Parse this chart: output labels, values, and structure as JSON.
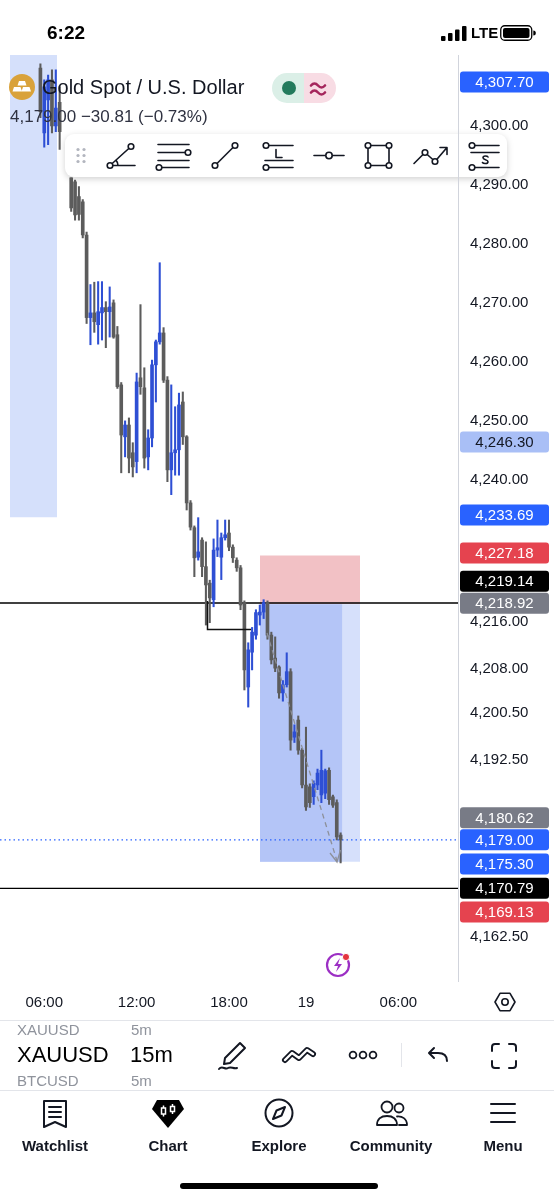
{
  "chart_data": {
    "type": "candlestick",
    "title": "Gold Spot / U.S. Dollar",
    "subtitle": "4,179.00 −30.81 (−0.73%)",
    "categories": [
      null,
      null,
      null,
      null,
      null,
      null,
      null,
      null,
      null,
      null,
      null,
      "06:00",
      null,
      null,
      null,
      null,
      null,
      null,
      null,
      null,
      null,
      null,
      null,
      null,
      null,
      null,
      null,
      null,
      null,
      null,
      null,
      null,
      null,
      null,
      null,
      "12:00",
      null,
      null,
      null,
      null,
      null,
      null,
      null,
      null,
      null,
      null,
      null,
      null,
      null,
      null,
      null,
      null,
      null,
      null,
      null,
      null,
      null,
      null,
      null,
      "18:00",
      null,
      null,
      null,
      null,
      null,
      null,
      null,
      null,
      null,
      null,
      null,
      null,
      null,
      null,
      null,
      null,
      null,
      null,
      null,
      "19",
      null,
      null,
      null,
      null,
      null,
      null,
      null,
      null,
      null,
      null,
      null,
      null,
      null,
      null,
      null,
      null,
      null,
      null,
      null,
      null,
      null,
      null,
      null,
      "06:00",
      null,
      null,
      null,
      null,
      null,
      null,
      null,
      null,
      null,
      null,
      null,
      null,
      null,
      null,
      null
    ],
    "ohlc": [
      null,
      null,
      null,
      null,
      null,
      null,
      null,
      null,
      null,
      null,
      [
        4309.8,
        4310.5,
        4301.4,
        4302.4
      ],
      [
        4298.8,
        4307.8,
        4296.4,
        4306.6
      ],
      [
        4304.4,
        4308.6,
        4296.8,
        4307.8
      ],
      [
        4307.8,
        4309.5,
        4298.8,
        4300.0
      ],
      [
        4300.0,
        4309.5,
        4299.0,
        4303.0
      ],
      [
        4304.0,
        4306.6,
        4296.0,
        4299.0
      ],
      null,
      null,
      [
        4291.2,
        4291.2,
        4285.5,
        4286.1
      ],
      [
        4290.5,
        4290.8,
        4284.0,
        4284.9
      ],
      [
        4288.0,
        4289.7,
        4284.0,
        4285.0
      ],
      [
        4287.1,
        4287.5,
        4281.0,
        4281.5
      ],
      [
        4281.5,
        4282.0,
        4266.5,
        4267.5
      ],
      [
        4267.5,
        4273.1,
        4262.9,
        4268.3
      ],
      [
        4268.3,
        4273.5,
        4265.0,
        4266.8
      ],
      [
        4266.3,
        4273.6,
        4263.0,
        4268.5
      ],
      [
        4268.3,
        4273.6,
        4263.7,
        4269.2
      ],
      [
        4269.2,
        4270.2,
        4262.4,
        4268.5
      ],
      [
        4268.5,
        4272.7,
        4264.2,
        4269.3
      ],
      [
        4270.0,
        4270.5,
        4264.0,
        4264.2
      ],
      [
        4264.6,
        4266.0,
        4255.5,
        4255.8
      ],
      [
        4256.1,
        4256.5,
        4241.2,
        4247.6
      ],
      [
        4247.3,
        4250.0,
        4243.9,
        4249.3
      ],
      [
        4249.3,
        4250.5,
        4241.2,
        4243.7
      ],
      [
        4244.6,
        4246.3,
        4240.5,
        4242.2
      ],
      [
        4243.1,
        4258.1,
        4241.2,
        4256.6
      ],
      [
        4257.3,
        4269.7,
        4254.5,
        4255.8
      ],
      [
        4255.6,
        4259.0,
        4242.0,
        4243.7
      ],
      [
        4243.9,
        4248.5,
        4241.7,
        4247.1
      ],
      [
        4247.1,
        4260.3,
        4245.6,
        4259.5
      ],
      [
        4259.5,
        4263.7,
        4253.2,
        4263.4
      ],
      [
        4263.4,
        4276.8,
        4263.0,
        4264.9
      ],
      [
        4264.9,
        4265.8,
        4256.5,
        4256.9
      ],
      [
        4256.9,
        4257.5,
        4239.7,
        4241.7
      ],
      [
        4241.7,
        4256.1,
        4237.5,
        4244.6
      ],
      [
        4244.6,
        4252.4,
        4240.8,
        4245.1
      ],
      [
        4245.1,
        4254.7,
        4240.8,
        4252.7
      ],
      [
        4253.2,
        4254.9,
        4246.0,
        4247.3
      ],
      [
        4247.3,
        4247.5,
        4234.9,
        4236.1
      ],
      [
        4236.1,
        4236.5,
        4231.5,
        4232.0
      ],
      [
        4231.9,
        4232.2,
        4223.6,
        4226.8
      ],
      [
        4226.9,
        4233.6,
        4226.4,
        4227.8
      ],
      [
        4229.8,
        4230.2,
        4223.6,
        4225.3
      ],
      [
        4225.3,
        4229.5,
        4215.4,
        4222.2
      ],
      [
        4222.5,
        4223.0,
        4215.8,
        4220.0
      ],
      [
        4219.7,
        4230.0,
        4218.5,
        4228.1
      ],
      [
        4228.1,
        4233.2,
        4227.0,
        4228.5
      ],
      [
        4226.9,
        4231.0,
        4223.1,
        4230.2
      ],
      [
        4230.2,
        4233.2,
        4229.8,
        4230.7
      ],
      [
        4231.0,
        4233.2,
        4228.0,
        4228.6
      ],
      [
        4228.6,
        4229.0,
        4226.0,
        4226.8
      ],
      [
        4226.4,
        4226.8,
        4224.5,
        4225.1
      ],
      [
        4225.1,
        4225.5,
        4218.0,
        4218.8
      ],
      [
        4219.2,
        4219.5,
        4204.4,
        4207.8
      ],
      [
        4204.9,
        4212.4,
        4201.5,
        4211.2
      ],
      [
        4210.8,
        4215.0,
        4207.8,
        4214.2
      ],
      [
        4213.7,
        4218.0,
        4213.0,
        4217.5
      ],
      [
        4217.1,
        4218.8,
        4215.4,
        4217.6
      ],
      [
        4217.6,
        4219.7,
        4216.5,
        4219.2
      ],
      [
        4219.2,
        4219.5,
        4213.0,
        4213.7
      ],
      [
        4213.7,
        4214.2,
        4208.8,
        4209.5
      ],
      [
        4209.8,
        4213.4,
        4207.5,
        4208.1
      ],
      [
        4208.3,
        4208.5,
        4203.0,
        4203.9
      ],
      [
        4203.9,
        4206.0,
        4202.5,
        4205.3
      ],
      [
        4205.3,
        4210.7,
        4204.9,
        4207.5
      ],
      [
        4207.5,
        4208.0,
        4194.2,
        4195.9
      ],
      [
        4196.4,
        4198.5,
        4195.5,
        4197.3
      ],
      [
        4199.3,
        4200.0,
        4193.5,
        4194.2
      ],
      [
        4194.2,
        4194.5,
        4187.8,
        4188.3
      ],
      [
        4188.3,
        4198.1,
        4184.0,
        4184.6
      ],
      [
        4188.0,
        4188.5,
        4184.5,
        4185.3
      ],
      [
        4186.3,
        4189.0,
        4185.0,
        4188.6
      ],
      [
        4188.3,
        4191.0,
        4187.5,
        4190.3
      ],
      [
        4186.6,
        4194.2,
        4185.3,
        4190.8
      ],
      [
        4186.9,
        4191.0,
        4186.0,
        4190.7
      ],
      [
        4190.8,
        4191.2,
        4185.0,
        4185.8
      ],
      [
        4186.3,
        4186.6,
        4184.5,
        4184.9
      ],
      [
        4185.3,
        4185.8,
        4179.0,
        4179.5
      ],
      [
        4179.8,
        4180.2,
        4175.1,
        4179.0
      ],
      null,
      null,
      null,
      null,
      null,
      null,
      null,
      null,
      null,
      null,
      null,
      null,
      null,
      null,
      null,
      null,
      null,
      null,
      null,
      null,
      null,
      null,
      null,
      null,
      null,
      null,
      null,
      null,
      null,
      null
    ],
    "colors": [
      null,
      null,
      null,
      null,
      null,
      null,
      null,
      null,
      null,
      null,
      "#5c5c5c",
      "#2e4fd4",
      "#2e4fd4",
      "#5c5c5c",
      "#2e4fd4",
      "#5c5c5c",
      null,
      null,
      "#5c5c5c",
      "#5c5c5c",
      "#5c5c5c",
      "#5c5c5c",
      "#5c5c5c",
      "#2e4fd4",
      "#5c5c5c",
      "#2e4fd4",
      "#2e4fd4",
      "#5c5c5c",
      "#2e4fd4",
      "#5c5c5c",
      "#5c5c5c",
      "#5c5c5c",
      "#2e4fd4",
      "#5c5c5c",
      "#5c5c5c",
      "#2e4fd4",
      "#5c5c5c",
      "#5c5c5c",
      "#2e4fd4",
      "#2e4fd4",
      "#2e4fd4",
      "#2e4fd4",
      "#5c5c5c",
      "#5c5c5c",
      "#2e4fd4",
      "#2e4fd4",
      "#2e4fd4",
      "#5c5c5c",
      "#5c5c5c",
      "#5c5c5c",
      "#5c5c5c",
      "#2e4fd4",
      "#5c5c5c",
      "#5c5c5c",
      "#5c5c5c",
      "#2e4fd4",
      "#2e4fd4",
      "#2e4fd4",
      "#2e4fd4",
      "#5c5c5c",
      "#5c5c5c",
      "#5c5c5c",
      "#5c5c5c",
      "#5c5c5c",
      "#2e4fd4",
      "#2e4fd4",
      "#2e4fd4",
      "#2e4fd4",
      "#2e4fd4",
      "#5c5c5c",
      "#5c5c5c",
      "#5c5c5c",
      "#5c5c5c",
      "#2e4fd4",
      "#2e4fd4",
      "#5c5c5c",
      "#2e4fd4",
      "#5c5c5c",
      "#5c5c5c",
      "#5c5c5c",
      "#5c5c5c",
      "#2e4fd4",
      "#2e4fd4",
      "#2e4fd4",
      "#2e4fd4",
      "#5c5c5c",
      "#5c5c5c",
      "#5c5c5c",
      "#5c5c5c",
      null,
      null,
      null,
      null,
      null,
      null,
      null,
      null,
      null,
      null,
      null,
      null,
      null,
      null,
      null,
      null,
      null,
      null,
      null,
      null,
      null,
      null,
      null,
      null,
      null,
      null,
      null,
      null,
      null,
      null
    ],
    "ylim": [
      4155,
      4312
    ],
    "yticks": [
      {
        "value": 4300,
        "label": "4,300.00"
      },
      {
        "value": 4290,
        "label": "4,290.00"
      },
      {
        "value": 4280,
        "label": "4,280.00"
      },
      {
        "value": 4270,
        "label": "4,270.00"
      },
      {
        "value": 4260,
        "label": "4,260.00"
      },
      {
        "value": 4250,
        "label": "4,250.00"
      },
      {
        "value": 4240,
        "label": "4,240.00"
      },
      {
        "value": 4216,
        "label": "4,216.00"
      },
      {
        "value": 4208,
        "label": "4,208.00"
      },
      {
        "value": 4200.5,
        "label": "4,200.50"
      },
      {
        "value": 4192.5,
        "label": "4,192.50"
      },
      {
        "value": 4162.5,
        "label": "4,162.50"
      }
    ],
    "ref_lines": [
      {
        "axis": "y",
        "value": 4219.14,
        "label": "4,219.14",
        "color": "#000000"
      },
      {
        "axis": "y",
        "value": 4170.79,
        "label": "4,170.79",
        "color": "#000000"
      },
      {
        "axis": "y",
        "value": 4179.0,
        "label": "4,179.00",
        "color": "#2962ff",
        "line_style": "dotted"
      }
    ],
    "bands": [
      {
        "axis": "y",
        "from": 4218.92,
        "to": 4227.18,
        "color": "#f2c1c5"
      },
      {
        "axis": "y",
        "from": 4175.3,
        "to": 4218.92,
        "color": "#d6e0fb"
      },
      {
        "axis": "y",
        "from": 4175.3,
        "to": 4218.92,
        "color": "#b4c5f7"
      },
      {
        "axis": "y",
        "from": 4233.69,
        "to": 4312,
        "color": "#d5e0fb"
      }
    ],
    "annotations": [
      "4,307.70",
      "4,246.30",
      "4,233.69",
      "4,227.18",
      "4,218.92",
      "4,180.62",
      "4,175.30",
      "4,169.13",
      "6:22",
      "LTE",
      "XAUUSD",
      "5m",
      "XAUUSD",
      "15m",
      "BTCUSD",
      "5m",
      "Watchlist",
      "Chart",
      "Explore",
      "Community",
      "Menu"
    ]
  }
}
